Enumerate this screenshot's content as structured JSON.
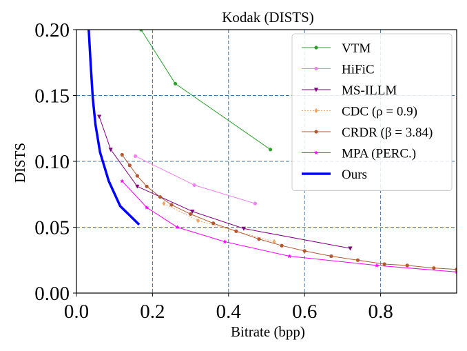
{
  "chart_data": {
    "type": "line",
    "title": "Kodak (DISTS)",
    "xlabel": "Bitrate (bpp)",
    "ylabel": "DISTS",
    "xlim": [
      0.0,
      1.0
    ],
    "ylim": [
      0.0,
      0.2
    ],
    "xticks": [
      "0.0",
      "0.2",
      "0.4",
      "0.6",
      "0.8"
    ],
    "yticks": [
      "0.00",
      "0.05",
      "0.10",
      "0.15",
      "0.20"
    ],
    "xtick_values": [
      0.0,
      0.2,
      0.4,
      0.6,
      0.8
    ],
    "ytick_values": [
      0.0,
      0.05,
      0.1,
      0.15,
      0.2
    ],
    "grid": true,
    "legend_position": "top-right",
    "series": [
      {
        "name": "VTM",
        "color": "#2ca02c",
        "marker": "circle",
        "line_style": "solid",
        "points": [
          [
            0.17,
            0.2
          ],
          [
            0.26,
            0.159
          ],
          [
            0.51,
            0.109
          ]
        ]
      },
      {
        "name": "HiFiC",
        "color": "#ee82ee",
        "marker": "circle",
        "line_style": "solid",
        "points": [
          [
            0.155,
            0.104
          ],
          [
            0.31,
            0.082
          ],
          [
            0.47,
            0.068
          ]
        ]
      },
      {
        "name": "MS-ILLM",
        "color": "#800080",
        "marker": "triangle-down",
        "line_style": "solid",
        "points": [
          [
            0.06,
            0.134
          ],
          [
            0.09,
            0.109
          ],
          [
            0.16,
            0.081
          ],
          [
            0.305,
            0.062
          ],
          [
            0.44,
            0.049
          ],
          [
            0.72,
            0.034
          ]
        ]
      },
      {
        "name": "CDC (ρ = 0.9)",
        "color": "#f4a460",
        "marker": "diamond",
        "line_style": "dotted",
        "points": [
          [
            0.23,
            0.068
          ],
          [
            0.32,
            0.055
          ],
          [
            0.52,
            0.039
          ]
        ]
      },
      {
        "name": "CRDR (β = 3.84)",
        "color": "#b5582f",
        "marker": "circle",
        "line_style": "solid",
        "points": [
          [
            0.12,
            0.105
          ],
          [
            0.14,
            0.097
          ],
          [
            0.16,
            0.089
          ],
          [
            0.185,
            0.081
          ],
          [
            0.22,
            0.073
          ],
          [
            0.25,
            0.067
          ],
          [
            0.3,
            0.06
          ],
          [
            0.36,
            0.053
          ],
          [
            0.42,
            0.047
          ],
          [
            0.48,
            0.041
          ],
          [
            0.54,
            0.036
          ],
          [
            0.6,
            0.032
          ],
          [
            0.67,
            0.028
          ],
          [
            0.74,
            0.025
          ],
          [
            0.81,
            0.022
          ],
          [
            0.87,
            0.021
          ],
          [
            0.94,
            0.019
          ],
          [
            1.0,
            0.018
          ]
        ]
      },
      {
        "name": "MPA (PERC.)",
        "color": "#ff00ff",
        "marker": "star",
        "line_style": "solid",
        "points": [
          [
            0.12,
            0.085
          ],
          [
            0.185,
            0.065
          ],
          [
            0.265,
            0.05
          ],
          [
            0.39,
            0.039
          ],
          [
            0.56,
            0.028
          ],
          [
            0.79,
            0.021
          ],
          [
            1.0,
            0.016
          ]
        ]
      },
      {
        "name": "Ours",
        "color": "#0000ff",
        "marker": "none",
        "line_style": "solid",
        "line_width": 3.5,
        "points": [
          [
            0.032,
            0.201
          ],
          [
            0.037,
            0.176
          ],
          [
            0.043,
            0.148
          ],
          [
            0.05,
            0.128
          ],
          [
            0.062,
            0.107
          ],
          [
            0.085,
            0.085
          ],
          [
            0.115,
            0.066
          ],
          [
            0.165,
            0.052
          ]
        ]
      }
    ]
  }
}
